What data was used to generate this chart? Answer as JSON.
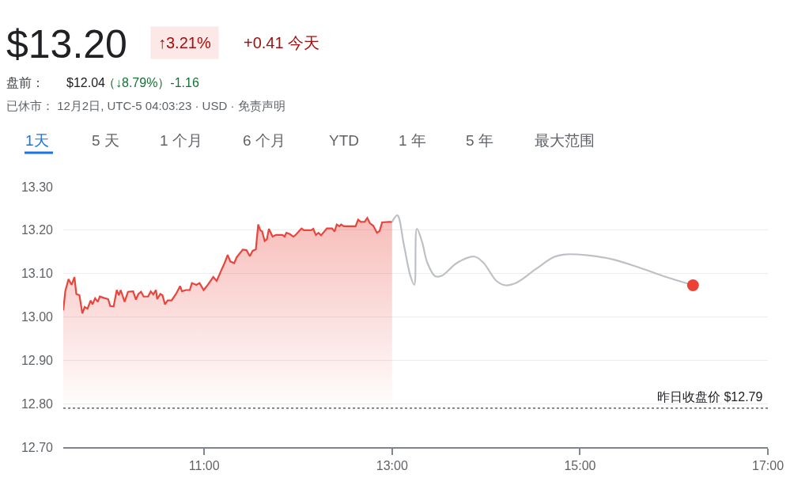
{
  "chart_data": {
    "type": "area",
    "title": "$13.20",
    "annotations": [
      "↑3.21%",
      "+0.41 今天",
      "盘前：",
      "$12.04",
      "（↓8.79%）-1.16",
      "已休市： 12月2日, UTC-5 04:03:23 · USD · 免责声明",
      "1天",
      "5 天",
      "1 个月",
      "6 个月",
      "YTD",
      "1 年",
      "5 年",
      "最大范围"
    ],
    "series": [
      {
        "color": "#e8453c",
        "x": [
          9.5,
          9.522,
          9.556,
          9.589,
          9.619,
          9.639,
          9.672,
          9.703,
          9.728,
          9.758,
          9.792,
          9.811,
          9.839,
          9.867,
          9.889,
          9.931,
          9.978,
          10.0,
          10.036,
          10.069,
          10.092,
          10.111,
          10.153,
          10.189,
          10.244,
          10.273,
          10.3,
          10.328,
          10.356,
          10.403,
          10.431,
          10.458,
          10.486,
          10.5,
          10.533,
          10.556,
          10.583,
          10.611,
          10.653,
          10.7,
          10.744,
          10.764,
          10.806,
          10.847,
          10.869,
          10.917,
          10.95,
          10.994,
          11.028,
          11.097,
          11.133,
          11.181,
          11.217,
          11.25,
          11.278,
          11.319,
          11.347,
          11.411,
          11.45,
          11.486,
          11.514,
          11.55,
          11.575,
          11.597,
          11.617,
          11.644,
          11.667,
          11.689,
          11.728,
          11.764,
          11.833,
          11.856,
          11.875,
          11.911,
          11.95,
          11.978,
          12.036,
          12.061,
          12.139,
          12.161,
          12.189,
          12.217,
          12.244,
          12.306,
          12.361,
          12.389,
          12.411,
          12.439,
          12.458,
          12.486,
          12.611,
          12.639,
          12.667,
          12.708,
          12.736,
          12.764,
          12.8,
          12.839,
          12.867,
          12.894,
          12.972,
          13.0
        ],
        "values": [
          13.015,
          13.06,
          13.087,
          13.074,
          13.092,
          13.053,
          13.05,
          13.008,
          13.023,
          13.019,
          13.038,
          13.029,
          13.043,
          13.035,
          13.047,
          13.044,
          13.041,
          13.025,
          13.024,
          13.062,
          13.05,
          13.062,
          13.035,
          13.058,
          13.059,
          13.04,
          13.053,
          13.058,
          13.047,
          13.047,
          13.059,
          13.052,
          13.062,
          13.041,
          13.053,
          13.05,
          13.029,
          13.038,
          13.038,
          13.053,
          13.071,
          13.059,
          13.062,
          13.062,
          13.078,
          13.074,
          13.078,
          13.062,
          13.071,
          13.092,
          13.083,
          13.107,
          13.124,
          13.143,
          13.128,
          13.124,
          13.138,
          13.155,
          13.154,
          13.14,
          13.152,
          13.156,
          13.213,
          13.2,
          13.197,
          13.175,
          13.179,
          13.203,
          13.185,
          13.189,
          13.189,
          13.185,
          13.194,
          13.191,
          13.185,
          13.19,
          13.204,
          13.2,
          13.2,
          13.203,
          13.189,
          13.194,
          13.188,
          13.204,
          13.204,
          13.197,
          13.213,
          13.209,
          13.213,
          13.209,
          13.209,
          13.224,
          13.219,
          13.219,
          13.228,
          13.216,
          13.21,
          13.194,
          13.198,
          13.218,
          13.219,
          13.219
        ]
      },
      {
        "type": "line",
        "color": "#bdc1c6",
        "x": [
          13.0,
          13.056,
          13.125,
          13.194,
          13.236,
          13.264,
          13.319,
          13.375,
          13.458,
          13.528,
          13.694,
          13.875,
          13.972,
          14.111,
          14.208,
          14.333,
          14.528,
          14.722,
          14.833,
          15.083,
          15.361,
          15.639,
          15.917,
          16.203
        ],
        "values": [
          13.219,
          13.234,
          13.167,
          13.095,
          13.074,
          13.203,
          13.173,
          13.125,
          13.094,
          13.095,
          13.125,
          13.139,
          13.125,
          13.083,
          13.073,
          13.08,
          13.11,
          13.138,
          13.144,
          13.142,
          13.132,
          13.113,
          13.092,
          13.073
        ]
      },
      {
        "type": "scatter",
        "color": "#ea4335",
        "marker": "circle",
        "x": [
          16.203
        ],
        "values": [
          13.073
        ]
      }
    ],
    "xlim": [
      9.5,
      17
    ],
    "xticks": [
      {
        "value": 11,
        "label": "11:00"
      },
      {
        "value": 13,
        "label": "13:00"
      },
      {
        "value": 15,
        "label": "15:00"
      },
      {
        "value": 17,
        "label": "17:00"
      }
    ],
    "ylim": [
      12.7,
      13.3
    ],
    "yticks": [
      {
        "value": 12.7,
        "label": "12.70"
      },
      {
        "value": 12.8,
        "label": "12.80"
      },
      {
        "value": 12.9,
        "label": "12.90"
      },
      {
        "value": 13.0,
        "label": "13.00"
      },
      {
        "value": 13.1,
        "label": "13.10"
      },
      {
        "value": 13.2,
        "label": "13.20"
      },
      {
        "value": 13.3,
        "label": "13.30"
      }
    ],
    "ref_lines": [
      {
        "axis": "y",
        "value": 12.79,
        "label": "昨日收盘价 $12.79",
        "color": "#5f6368",
        "line_style": "dotted"
      }
    ],
    "grid": "y"
  }
}
